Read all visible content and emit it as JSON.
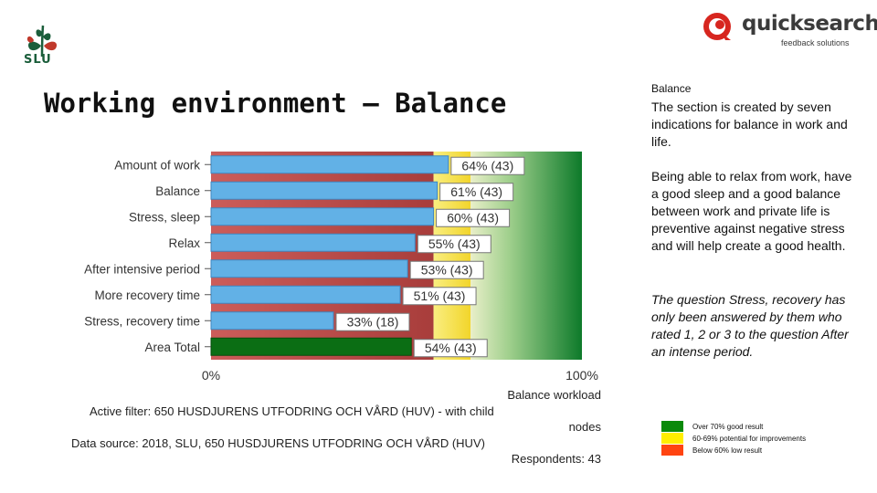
{
  "header": {
    "title": "Working environment – Balance",
    "org_logo_text": "SLU",
    "brand_name": "quicksearch",
    "brand_tagline": "feedback solutions",
    "logo_icons": [
      "slu-plant-logo-icon",
      "quicksearch-swirl-icon"
    ]
  },
  "side_panel": {
    "heading": "Balance",
    "paragraph1": "The section is created by seven indications for balance in work and life.",
    "paragraph2": "Being able to relax from work, have a good sleep and a good balance between work and private life is preventive against negative stress and will help create a good health.",
    "paragraph3": "The question Stress, recovery has only been answered by them who rated 1, 2 or 3 to the question After an intense period.",
    "legend": [
      {
        "label": "Over 70% good result",
        "color": "#0a8a0a"
      },
      {
        "label": "60-69% potential for improvements",
        "color": "#ffee00"
      },
      {
        "label": "Below 60% low result",
        "color": "#ff4411"
      }
    ]
  },
  "chart_data": {
    "type": "bar",
    "orientation": "horizontal",
    "categories": [
      "Amount of work",
      "Balance",
      "Stress, sleep",
      "Relax",
      "After intensive period",
      "More recovery time",
      "Stress, recovery time",
      "Area Total"
    ],
    "values": [
      64,
      61,
      60,
      55,
      53,
      51,
      33,
      54
    ],
    "counts": [
      43,
      43,
      43,
      43,
      43,
      43,
      18,
      43
    ],
    "value_labels": [
      "64% (43)",
      "61% (43)",
      "60% (43)",
      "55% (43)",
      "53% (43)",
      "51% (43)",
      "33% (18)",
      "54% (43)"
    ],
    "xlim": [
      0,
      100
    ],
    "x_tick_labels": [
      "0%",
      "100%"
    ],
    "bar_color": "#62b1e6",
    "total_bar_color": "#0b6e14",
    "background_bands": [
      {
        "from": 0,
        "to": 60,
        "color": "#b84a48"
      },
      {
        "from": 60,
        "to": 70,
        "color": "#f6e24a"
      },
      {
        "from": 70,
        "to": 100,
        "color": "#2e8b2e"
      }
    ]
  },
  "footer": {
    "chart_label": "Balance workload",
    "filter_line1": "Active filter: 650 HUSDJURENS UTFODRING OCH VÅRD (HUV) - with child",
    "filter_line2": "nodes",
    "source": "Data source: 2018, SLU, 650 HUSDJURENS UTFODRING OCH VÅRD (HUV)",
    "respondents": "Respondents: 43"
  }
}
